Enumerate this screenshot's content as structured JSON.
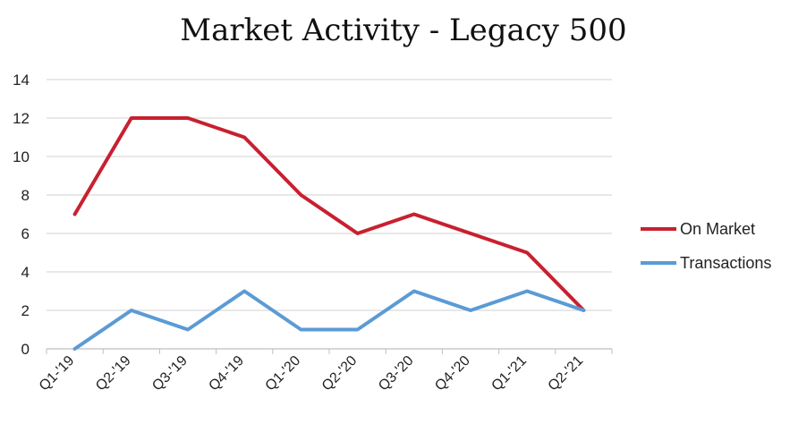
{
  "chart_data": {
    "type": "line",
    "title": "Market Activity - Legacy 500",
    "categories": [
      "Q1-'19",
      "Q2-'19",
      "Q3-'19",
      "Q4-'19",
      "Q1-'20",
      "Q2-'20",
      "Q3-'20",
      "Q4-'20",
      "Q1-'21",
      "Q2-'21"
    ],
    "series": [
      {
        "name": "On Market",
        "values": [
          7,
          12,
          12,
          11,
          8,
          6,
          7,
          6,
          5,
          2
        ],
        "color": "#c8202f"
      },
      {
        "name": "Transactions",
        "values": [
          0,
          2,
          1,
          3,
          1,
          1,
          3,
          2,
          3,
          2
        ],
        "color": "#5b9bd5"
      }
    ],
    "ylim": [
      0,
      14
    ],
    "yticks": [
      0,
      2,
      4,
      6,
      8,
      10,
      12,
      14
    ],
    "grid": true,
    "legend": "right",
    "xlabel": "",
    "ylabel": ""
  }
}
